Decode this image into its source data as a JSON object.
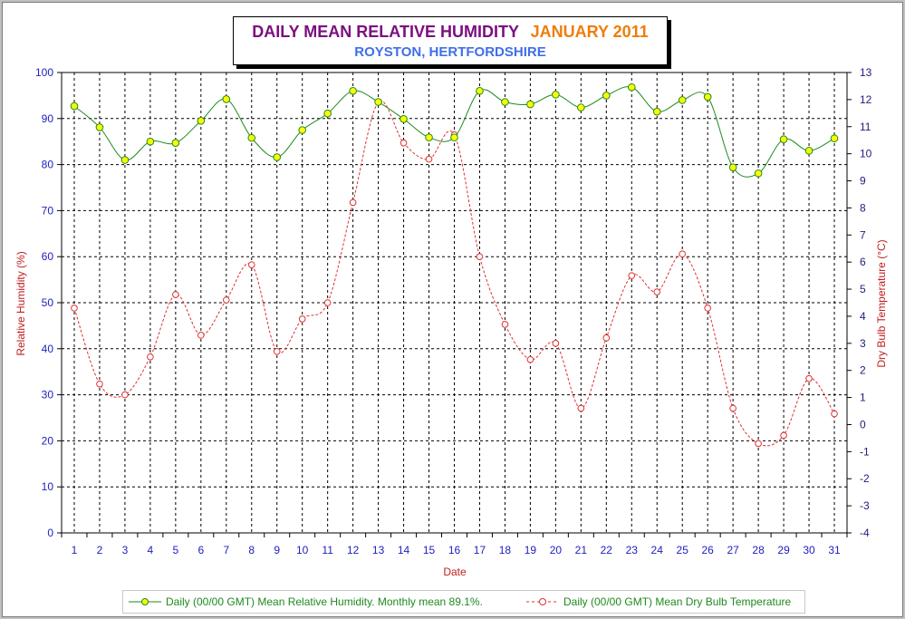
{
  "title": {
    "main": "DAILY MEAN RELATIVE HUMIDITY",
    "month": "JANUARY 2011",
    "subtitle": "ROYSTON, HERTFORDSHIRE"
  },
  "colors": {
    "title_main": "#7b0f80",
    "title_month": "#f07d0a",
    "subtitle": "#3f6fe8",
    "humidity_line": "#1e8a1e",
    "humidity_marker_fill": "#ffff00",
    "temperature_line": "#e03030",
    "left_axis_text": "#2020c0",
    "right_axis_text": "#202080",
    "axis_title": "#c02020"
  },
  "chart_data": {
    "type": "line",
    "title": "DAILY MEAN RELATIVE HUMIDITY JANUARY 2011",
    "subtitle": "ROYSTON, HERTFORDSHIRE",
    "xlabel": "Date",
    "ylabel": "Relative Humidity (%)",
    "y2label": "Dry Bulb Temperature (°C)",
    "x": [
      1,
      2,
      3,
      4,
      5,
      6,
      7,
      8,
      9,
      10,
      11,
      12,
      13,
      14,
      15,
      16,
      17,
      18,
      19,
      20,
      21,
      22,
      23,
      24,
      25,
      26,
      27,
      28,
      29,
      30,
      31
    ],
    "ylim": [
      0,
      100
    ],
    "y_ticks": [
      0,
      10,
      20,
      30,
      40,
      50,
      60,
      70,
      80,
      90,
      100
    ],
    "y2lim": [
      -4,
      13
    ],
    "y2_ticks": [
      -4,
      -3,
      -2,
      -1,
      0,
      1,
      2,
      3,
      4,
      5,
      6,
      7,
      8,
      9,
      10,
      11,
      12,
      13
    ],
    "grid": true,
    "legend_position": "bottom",
    "series": [
      {
        "name": "Daily (00/00 GMT) Mean Relative Humidity. Monthly mean 89.1%.",
        "axis": "left",
        "style": "solid line, yellow circle markers",
        "values": [
          92.7,
          88.1,
          81.0,
          85.0,
          84.7,
          89.5,
          94.2,
          85.8,
          81.6,
          87.5,
          91.1,
          96.0,
          93.6,
          89.9,
          85.9,
          85.9,
          96.0,
          93.6,
          93.1,
          95.2,
          92.4,
          95.0,
          96.8,
          91.5,
          94.0,
          94.7,
          79.4,
          78.1,
          85.5,
          83.0,
          85.7
        ]
      },
      {
        "name": "Daily (00/00 GMT) Mean Dry Bulb Temperature",
        "axis": "right",
        "style": "dashed line, open circle markers",
        "values": [
          4.3,
          1.5,
          1.1,
          2.5,
          4.8,
          3.3,
          4.6,
          5.9,
          2.7,
          3.9,
          4.5,
          8.2,
          11.9,
          10.4,
          9.8,
          10.7,
          6.2,
          3.7,
          2.4,
          3.0,
          0.6,
          3.2,
          5.5,
          4.9,
          6.3,
          4.3,
          0.6,
          -0.7,
          -0.4,
          1.7,
          0.4
        ]
      }
    ],
    "legend": [
      "Daily (00/00 GMT) Mean Relative Humidity. Monthly mean 89.1%.",
      "Daily (00/00 GMT) Mean Dry Bulb Temperature"
    ]
  }
}
